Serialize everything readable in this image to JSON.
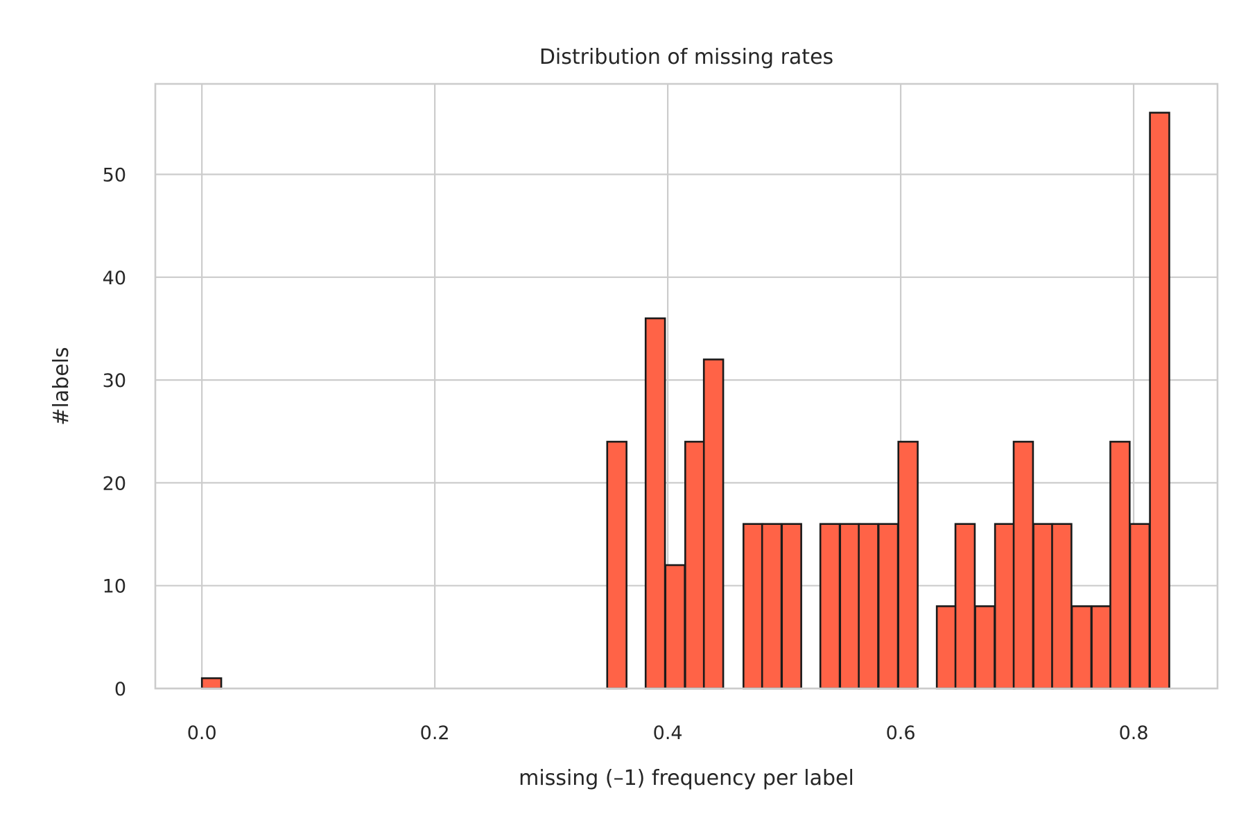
{
  "chart_data": {
    "type": "bar",
    "title": "Distribution of missing rates",
    "xlabel": "missing (–1) frequency per label",
    "ylabel": "#labels",
    "xlim": [
      -0.04,
      0.872
    ],
    "ylim": [
      0,
      58.8
    ],
    "x_ticks": [
      0.0,
      0.2,
      0.4,
      0.6,
      0.8
    ],
    "x_tick_labels": [
      "0.0",
      "0.2",
      "0.4",
      "0.6",
      "0.8"
    ],
    "y_ticks": [
      0,
      10,
      20,
      30,
      40,
      50
    ],
    "y_tick_labels": [
      "0",
      "10",
      "20",
      "30",
      "40",
      "50"
    ],
    "grid": true,
    "bar_color": "#ff6347",
    "edge_color": "#1a1a1a",
    "bin_width": 0.0166,
    "bins": [
      {
        "x": 0.0,
        "count": 1
      },
      {
        "x": 0.348,
        "count": 24
      },
      {
        "x": 0.381,
        "count": 36
      },
      {
        "x": 0.398,
        "count": 12
      },
      {
        "x": 0.415,
        "count": 24
      },
      {
        "x": 0.431,
        "count": 32
      },
      {
        "x": 0.465,
        "count": 16
      },
      {
        "x": 0.481,
        "count": 16
      },
      {
        "x": 0.498,
        "count": 16
      },
      {
        "x": 0.531,
        "count": 16
      },
      {
        "x": 0.548,
        "count": 16
      },
      {
        "x": 0.564,
        "count": 16
      },
      {
        "x": 0.581,
        "count": 16
      },
      {
        "x": 0.598,
        "count": 24
      },
      {
        "x": 0.631,
        "count": 8
      },
      {
        "x": 0.647,
        "count": 16
      },
      {
        "x": 0.664,
        "count": 8
      },
      {
        "x": 0.681,
        "count": 16
      },
      {
        "x": 0.697,
        "count": 24
      },
      {
        "x": 0.714,
        "count": 16
      },
      {
        "x": 0.73,
        "count": 16
      },
      {
        "x": 0.747,
        "count": 8
      },
      {
        "x": 0.764,
        "count": 8
      },
      {
        "x": 0.78,
        "count": 24
      },
      {
        "x": 0.797,
        "count": 16
      },
      {
        "x": 0.814,
        "count": 56
      }
    ]
  }
}
